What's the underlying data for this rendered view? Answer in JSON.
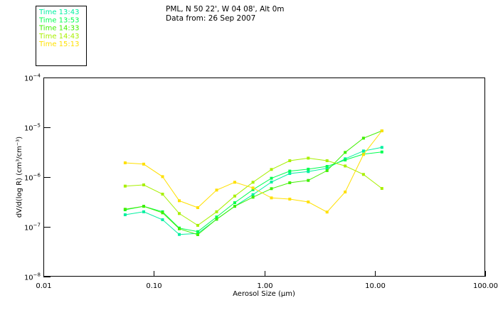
{
  "chart_data": {
    "type": "line",
    "title_lines": [
      "PML, N 50 22', W 04 08', Alt 0m",
      "Data from: 26 Sep 2007"
    ],
    "xlabel": "Aerosol Size (µm)",
    "ylabel": "dV/d(log R) (cm³/cm⁻³)",
    "xscale": "log",
    "yscale": "log",
    "xlim": [
      0.01,
      100
    ],
    "ylim": [
      1e-08,
      0.0001
    ],
    "xticks": [
      {
        "v": 0.01,
        "label": "0.01"
      },
      {
        "v": 0.1,
        "label": "0.10"
      },
      {
        "v": 1,
        "label": "1.00"
      },
      {
        "v": 10,
        "label": "10.00"
      },
      {
        "v": 100,
        "label": "100.00"
      }
    ],
    "yticks": [
      {
        "v": 0.0001,
        "exp": "-4"
      },
      {
        "v": 1e-05,
        "exp": "-5"
      },
      {
        "v": 1e-06,
        "exp": "-6"
      },
      {
        "v": 1e-07,
        "exp": "-7"
      },
      {
        "v": 1e-08,
        "exp": "-8"
      }
    ],
    "legend_position": "top-left",
    "grid": false,
    "x": [
      0.055,
      0.081,
      0.12,
      0.17,
      0.25,
      0.37,
      0.54,
      0.79,
      1.16,
      1.7,
      2.5,
      3.7,
      5.4,
      7.9,
      11.6
    ],
    "series": [
      {
        "name": "Time 13:43",
        "color": "#00f0a0",
        "values": [
          1.75e-07,
          2.01e-07,
          1.39e-07,
          7.03e-08,
          7.36e-08,
          1.42e-07,
          2.59e-07,
          4.44e-07,
          7.94e-07,
          1.18e-06,
          1.29e-06,
          1.5e-06,
          2.33e-06,
          3.34e-06,
          3.94e-06
        ]
      },
      {
        "name": "Time 13:53",
        "color": "#00ff50",
        "values": [
          2.2e-07,
          2.59e-07,
          2.01e-07,
          9.46e-08,
          8.02e-08,
          1.58e-07,
          3.06e-07,
          5.58e-07,
          9.46e-07,
          1.32e-06,
          1.44e-06,
          1.64e-06,
          2.2e-06,
          2.89e-06,
          3.19e-06
        ]
      },
      {
        "name": "Time 14:33",
        "color": "#40f000",
        "values": [
          2.25e-07,
          2.59e-07,
          1.91e-07,
          9.14e-08,
          6.97e-08,
          1.42e-07,
          2.59e-07,
          3.94e-07,
          5.85e-07,
          7.69e-07,
          8.57e-07,
          1.35e-06,
          3.13e-06,
          6.04e-06,
          8.49e-06
        ]
      },
      {
        "name": "Time 14:43",
        "color": "#a8f000",
        "values": [
          6.59e-07,
          6.97e-07,
          4.54e-07,
          1.85e-07,
          1.07e-07,
          2.01e-07,
          4.16e-07,
          7.87e-07,
          1.42e-06,
          2.13e-06,
          2.4e-06,
          2.13e-06,
          1.67e-06,
          1.13e-06,
          5.91e-07
        ]
      },
      {
        "name": "Time 15:13",
        "color": "#ffe000",
        "values": [
          1.93e-06,
          1.82e-06,
          1.02e-06,
          3.34e-07,
          2.43e-07,
          5.48e-07,
          7.87e-07,
          6.04e-07,
          3.81e-07,
          3.61e-07,
          3.16e-07,
          1.98e-07,
          5.01e-07,
          2.84e-06,
          8.49e-06
        ]
      }
    ]
  }
}
